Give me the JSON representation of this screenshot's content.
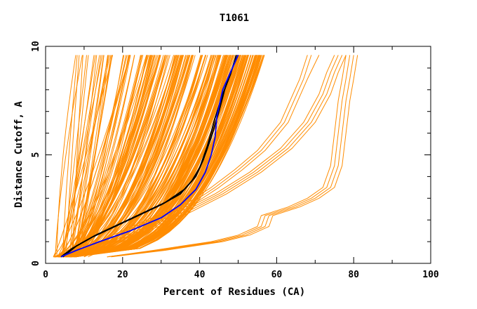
{
  "chart_data": {
    "type": "line",
    "title": "T1061",
    "xlabel": "Percent of Residues (CA)",
    "ylabel": "Distance Cutoff, A",
    "xlim": [
      0,
      100
    ],
    "ylim": [
      0,
      10
    ],
    "x_ticks": [
      "0",
      "20",
      "40",
      "60",
      "80",
      "100"
    ],
    "y_ticks": [
      "0",
      "5",
      "10"
    ],
    "grid": false,
    "legend": "none",
    "colors": {
      "bundle": "#ff8c00",
      "highlight_black": "#000000",
      "highlight_blue": "#0000ff"
    },
    "bundle": {
      "count": 230,
      "start_x_range": [
        2,
        8
      ],
      "start_y": 0.3,
      "max_y": 9.6,
      "end_x_range": [
        5,
        57
      ]
    },
    "outlier_groups": [
      {
        "name": "",
        "curves": [
          {
            "x": [
              8,
              15,
              22,
              30,
              38,
              44,
              50,
              56,
              62,
              67,
              69
            ],
            "y": [
              0.3,
              1.0,
              1.6,
              2.2,
              2.8,
              3.5,
              4.3,
              5.2,
              6.5,
              8.5,
              9.6
            ]
          },
          {
            "x": [
              8,
              16,
              23,
              31,
              39,
              45,
              51,
              57,
              63,
              68,
              71
            ],
            "y": [
              0.3,
              1.0,
              1.6,
              2.2,
              2.8,
              3.5,
              4.3,
              5.2,
              6.5,
              8.5,
              9.6
            ]
          },
          {
            "x": [
              8,
              14,
              21,
              29,
              37,
              43,
              49,
              55,
              61,
              66,
              68
            ],
            "y": [
              0.3,
              1.0,
              1.6,
              2.2,
              2.8,
              3.5,
              4.3,
              5.2,
              6.5,
              8.5,
              9.6
            ]
          }
        ]
      },
      {
        "name": "",
        "curves": [
          {
            "x": [
              10,
              18,
              26,
              35,
              45,
              54,
              62,
              68,
              72,
              74,
              76
            ],
            "y": [
              0.3,
              1.0,
              1.6,
              2.3,
              3.2,
              4.2,
              5.3,
              6.5,
              7.8,
              8.8,
              9.6
            ]
          },
          {
            "x": [
              10,
              19,
              27,
              36,
              46,
              55,
              63,
              69,
              73,
              75,
              77
            ],
            "y": [
              0.3,
              1.0,
              1.6,
              2.3,
              3.2,
              4.2,
              5.3,
              6.5,
              7.8,
              8.8,
              9.6
            ]
          },
          {
            "x": [
              10,
              17,
              25,
              34,
              44,
              53,
              61,
              67,
              71,
              73,
              75
            ],
            "y": [
              0.3,
              1.0,
              1.6,
              2.3,
              3.2,
              4.2,
              5.3,
              6.5,
              7.8,
              8.8,
              9.6
            ]
          },
          {
            "x": [
              11,
              20,
              28,
              37,
              47,
              56,
              64,
              70,
              74,
              76,
              78
            ],
            "y": [
              0.3,
              1.0,
              1.6,
              2.3,
              3.2,
              4.2,
              5.3,
              6.5,
              7.8,
              8.8,
              9.6
            ]
          }
        ]
      },
      {
        "name": "",
        "curves": [
          {
            "x": [
              16,
              30,
              45,
              52,
              57,
              58,
              65,
              70,
              74,
              76,
              77,
              78,
              79,
              80
            ],
            "y": [
              0.3,
              0.6,
              1.0,
              1.3,
              1.7,
              2.2,
              2.6,
              3.0,
              3.5,
              4.5,
              6.0,
              7.5,
              8.5,
              9.6
            ]
          },
          {
            "x": [
              16,
              29,
              44,
              51,
              56,
              57,
              64,
              69,
              73,
              75,
              76,
              77,
              78,
              79
            ],
            "y": [
              0.3,
              0.6,
              1.0,
              1.3,
              1.7,
              2.2,
              2.6,
              3.0,
              3.5,
              4.5,
              6.0,
              7.5,
              8.5,
              9.6
            ]
          },
          {
            "x": [
              17,
              31,
              46,
              53,
              58,
              59,
              66,
              71,
              75,
              77,
              78,
              79,
              80,
              81
            ],
            "y": [
              0.3,
              0.6,
              1.0,
              1.3,
              1.7,
              2.2,
              2.6,
              3.0,
              3.5,
              4.5,
              6.0,
              7.5,
              8.5,
              9.6
            ]
          },
          {
            "x": [
              16,
              28,
              43,
              50,
              55,
              56,
              63,
              68,
              72,
              74,
              75,
              76,
              77,
              78
            ],
            "y": [
              0.3,
              0.6,
              1.0,
              1.3,
              1.7,
              2.2,
              2.6,
              3.0,
              3.5,
              4.5,
              6.0,
              7.5,
              8.5,
              9.6
            ]
          }
        ]
      }
    ],
    "highlight_lines": [
      {
        "name": "",
        "color": "#000000",
        "x": [
          4.5,
          8,
          13,
          19,
          25,
          31,
          36,
          39,
          41,
          43,
          45,
          46.5,
          48,
          50
        ],
        "y": [
          0.3,
          0.8,
          1.3,
          1.8,
          2.3,
          2.8,
          3.4,
          4.0,
          4.8,
          5.8,
          7.0,
          8.0,
          8.8,
          9.6
        ]
      },
      {
        "name": "",
        "color": "#000000",
        "x": [
          4,
          7,
          12,
          18,
          24,
          30,
          35,
          38,
          40,
          42,
          44,
          46,
          48,
          49.5
        ],
        "y": [
          0.3,
          0.7,
          1.2,
          1.7,
          2.2,
          2.7,
          3.2,
          3.8,
          4.4,
          5.4,
          6.7,
          7.8,
          8.7,
          9.6
        ]
      },
      {
        "name": "",
        "color": "#0000ff",
        "x": [
          4,
          8,
          14,
          22,
          30,
          35,
          39,
          41.5,
          43,
          44,
          44.5,
          46,
          48,
          50
        ],
        "y": [
          0.3,
          0.6,
          1.0,
          1.5,
          2.1,
          2.7,
          3.4,
          4.2,
          5.0,
          5.8,
          6.8,
          8.0,
          8.8,
          9.6
        ]
      }
    ]
  }
}
